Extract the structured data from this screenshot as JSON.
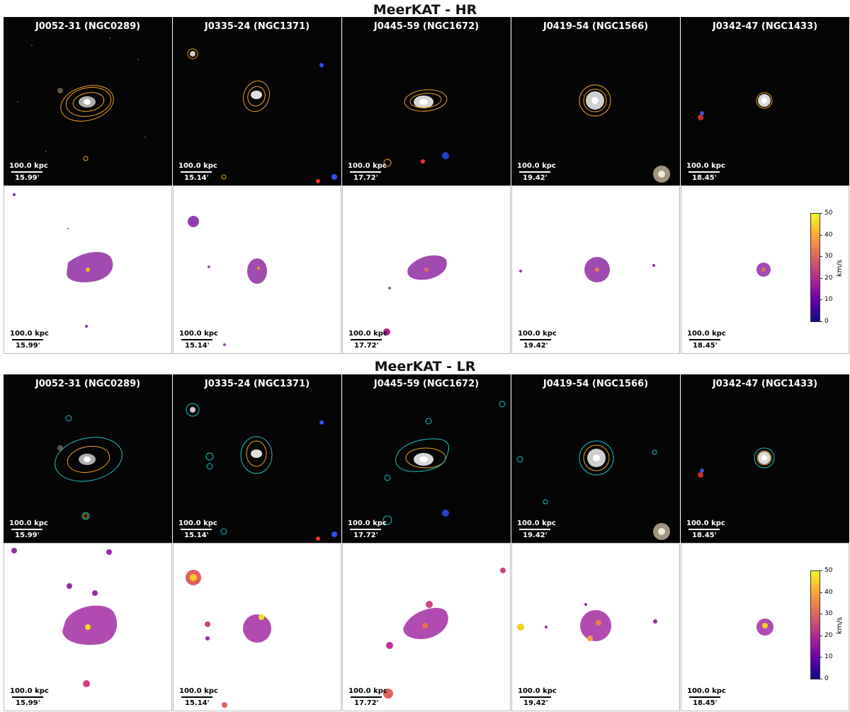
{
  "sections": [
    {
      "title": "MeerKAT - HR",
      "panels": [
        {
          "label": "J0052-31 (NGC0289)",
          "scale_phys": "100.0 kpc",
          "scale_ang": "15.99'"
        },
        {
          "label": "J0335-24 (NGC1371)",
          "scale_phys": "100.0 kpc",
          "scale_ang": "15.14'"
        },
        {
          "label": "J0445-59 (NGC1672)",
          "scale_phys": "100.0 kpc",
          "scale_ang": "17.72'"
        },
        {
          "label": "J0419-54 (NGC1566)",
          "scale_phys": "100.0 kpc",
          "scale_ang": "19.42'"
        },
        {
          "label": "J0342-47 (NGC1433)",
          "scale_phys": "100.0 kpc",
          "scale_ang": "18.45'"
        }
      ],
      "colorbar": {
        "label": "km/s",
        "ticks": [
          "0",
          "10",
          "20",
          "30",
          "40",
          "50"
        ]
      }
    },
    {
      "title": "MeerKAT - LR",
      "panels": [
        {
          "label": "J0052-31 (NGC0289)",
          "scale_phys": "100.0 kpc",
          "scale_ang": "15.99'"
        },
        {
          "label": "J0335-24 (NGC1371)",
          "scale_phys": "100.0 kpc",
          "scale_ang": "15.14'"
        },
        {
          "label": "J0445-59 (NGC1672)",
          "scale_phys": "100.0 kpc",
          "scale_ang": "17.72'"
        },
        {
          "label": "J0419-54 (NGC1566)",
          "scale_phys": "100.0 kpc",
          "scale_ang": "19.42'"
        },
        {
          "label": "J0342-47 (NGC1433)",
          "scale_phys": "100.0 kpc",
          "scale_ang": "18.45'"
        }
      ],
      "colorbar": {
        "label": "km/s",
        "ticks": [
          "0",
          "10",
          "20",
          "30",
          "40",
          "50"
        ]
      }
    }
  ],
  "colors": {
    "hr_contour": "#f0a020",
    "lr_contour": "#20c0c0",
    "colormap": [
      "#0d0887",
      "#6a00a8",
      "#b12a90",
      "#e16462",
      "#fca636",
      "#f0f921"
    ]
  }
}
